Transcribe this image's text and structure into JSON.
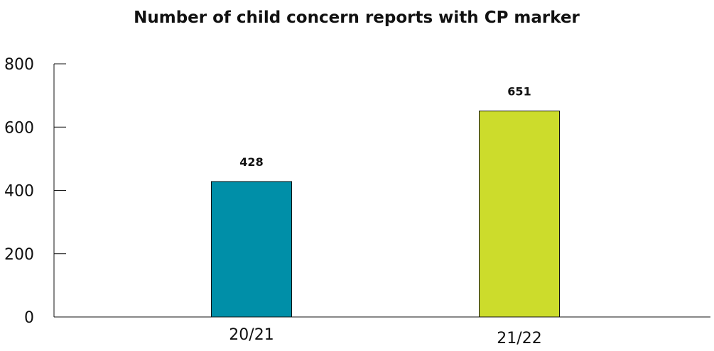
{
  "chart_data": {
    "type": "bar",
    "title": "Number of child concern reports with CP marker",
    "xlabel": "",
    "ylabel": "",
    "categories": [
      "20/21",
      "21/22"
    ],
    "values": [
      428,
      651
    ],
    "data_labels": [
      "428",
      "651"
    ],
    "bar_colors": [
      "#008fa8",
      "#ccdc2c"
    ],
    "ylim": [
      0,
      800
    ],
    "yticks": [
      0,
      200,
      400,
      600,
      800
    ],
    "ytick_labels": [
      "0",
      "200",
      "400",
      "600",
      "800"
    ],
    "grid": false,
    "legend": "none"
  }
}
